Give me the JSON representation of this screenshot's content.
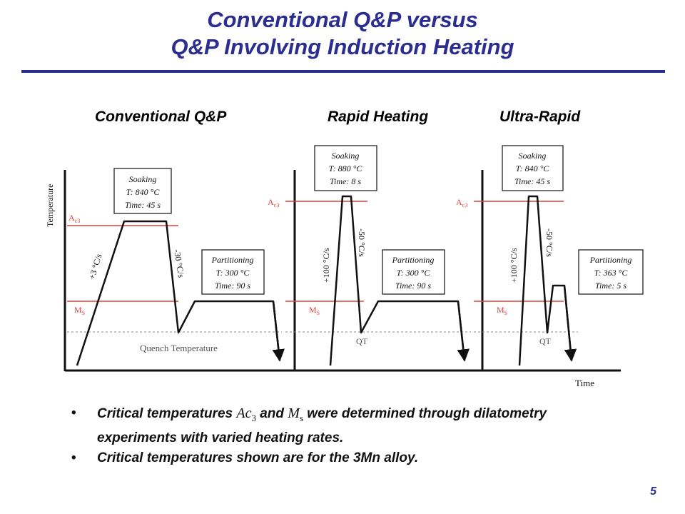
{
  "slide": {
    "title_line1": "Conventional Q&P versus",
    "title_line2": "Q&P Involving Induction Heating",
    "page_number": "5"
  },
  "columns": {
    "conventional": "Conventional Q&P",
    "rapid": "Rapid Heating",
    "ultra": "Ultra-Rapid"
  },
  "axes": {
    "y_label": "Temperature",
    "x_label": "Time"
  },
  "lines": {
    "ac3": "A",
    "ac3_sub": "c3",
    "ms": "M",
    "ms_sub": "S"
  },
  "panel1": {
    "soak_title": "Soaking",
    "soak_temp": "T: 840 °C",
    "soak_time": "Time: 45 s",
    "heat_rate": "+3 °C/s",
    "cool_rate": "-30 °C/s",
    "part_title": "Partitioning",
    "part_temp": "T: 300 °C",
    "part_time": "Time: 90 s",
    "quench_label": "Quench Temperature"
  },
  "panel2": {
    "soak_title": "Soaking",
    "soak_temp": "T: 880 °C",
    "soak_time": "Time: 8 s",
    "heat_rate": "+100 °C/s",
    "cool_rate": "-50 °C/s",
    "part_title": "Partitioning",
    "part_temp": "T: 300 °C",
    "part_time": "Time: 90 s",
    "qt_label": "QT"
  },
  "panel3": {
    "soak_title": "Soaking",
    "soak_temp": "T: 840 °C",
    "soak_time": "Time: 45 s",
    "heat_rate": "+100 °C/s",
    "cool_rate": "-50 °C/s",
    "part_title": "Partitioning",
    "part_temp": "T: 363 °C",
    "part_time": "Time: 5 s",
    "qt_label": "QT"
  },
  "bullets": {
    "b1_pre": "Critical temperatures ",
    "b1_ac": "Ac",
    "b1_ac_sub": "3",
    "b1_and": " and ",
    "b1_ms": "M",
    "b1_ms_sub": "s",
    "b1_post": " were determined through dilatometry experiments with varied heating rates.",
    "b2": "Critical temperatures shown are for the 3Mn alloy.",
    "bullet_char": "•"
  },
  "colors": {
    "title": "#2b2e8f",
    "critical_line": "#e0413a",
    "curve": "#111111"
  }
}
